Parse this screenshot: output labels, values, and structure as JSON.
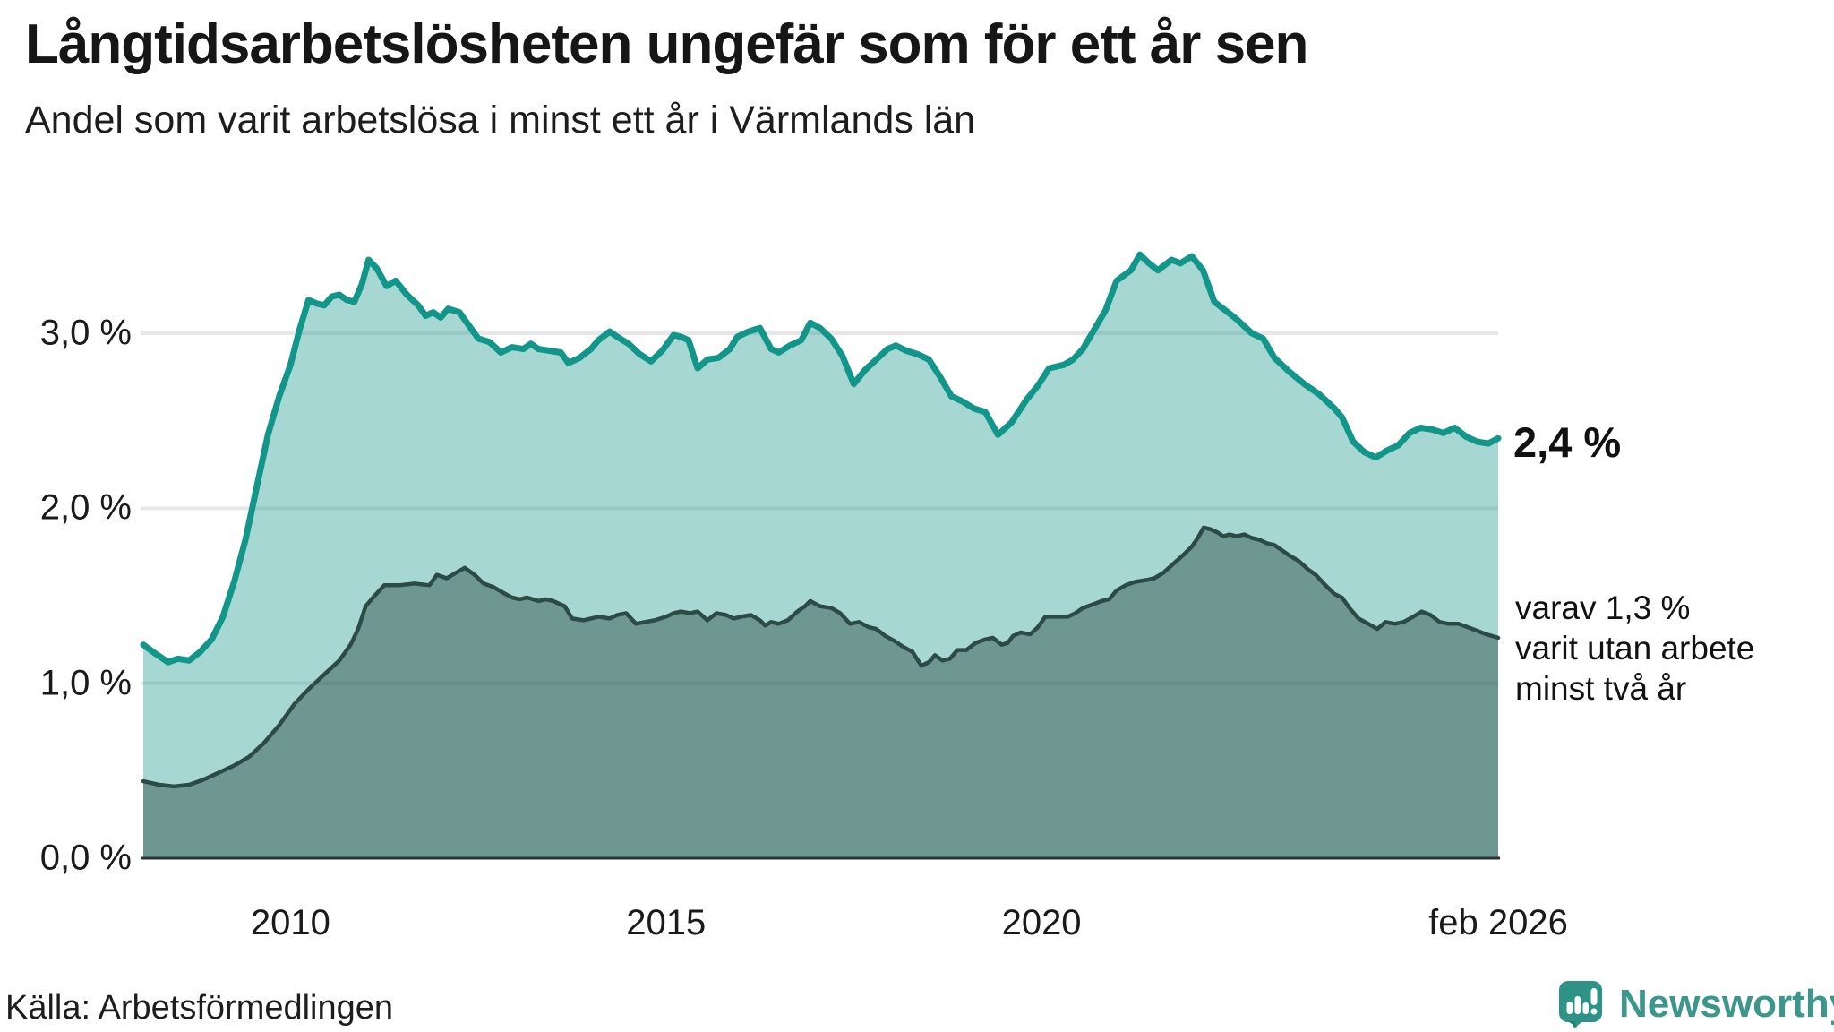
{
  "header": {
    "title": "Långtidsarbetslösheten ungefär som för ett år sen",
    "subtitle": "Andel som varit arbetslösa i minst ett år i Värmlands län"
  },
  "annotations": {
    "end_value": "2,4 %",
    "secondary_lines": [
      "varav 1,3 %",
      "varit utan arbete",
      "minst två år"
    ]
  },
  "source": "Källa: Arbetsförmedlingen",
  "logo": {
    "text": "Newsworthy",
    "icon": "newsworthy-chart-bubble-icon",
    "color": "#3b968b"
  },
  "colors": {
    "line_primary": "#12968a",
    "fill_primary": "rgba(23,150,138,0.38)",
    "line_secondary": "#2c4b46",
    "fill_secondary": "rgba(31,61,56,0.42)",
    "gridline": "#e7e7ea",
    "axis_line": "#26332f",
    "text": "#1a1a1a"
  },
  "chart_data": {
    "type": "area",
    "title": "Långtidsarbetslösheten ungefär som för ett år sen",
    "subtitle": "Andel som varit arbetslösa i minst ett år i Värmlands län",
    "unit": "%",
    "x_range": [
      2008.04,
      2026.08
    ],
    "ylim": [
      0,
      3.6
    ],
    "grid": true,
    "legend_position": "right-annotations",
    "y_ticks": [
      {
        "label": "3,0 %",
        "value": 3
      },
      {
        "label": "2,0 %",
        "value": 2
      },
      {
        "label": "1,0 %",
        "value": 1
      },
      {
        "label": "0,0 %",
        "value": 0
      }
    ],
    "x_ticks": [
      {
        "label": "2010",
        "year": 2010
      },
      {
        "label": "2015",
        "year": 2015
      },
      {
        "label": "2020",
        "year": 2020
      },
      {
        "label": "feb 2026",
        "year": 2026.08
      }
    ],
    "series": [
      {
        "name": "unemployed_at_least_one_year",
        "end_label": "2,4 %",
        "end_value": 2.4,
        "points": [
          [
            2008.04,
            1.22
          ],
          [
            2008.2,
            1.17
          ],
          [
            2008.37,
            1.12
          ],
          [
            2008.5,
            1.14
          ],
          [
            2008.65,
            1.13
          ],
          [
            2008.8,
            1.18
          ],
          [
            2008.95,
            1.25
          ],
          [
            2009.1,
            1.38
          ],
          [
            2009.25,
            1.58
          ],
          [
            2009.4,
            1.82
          ],
          [
            2009.55,
            2.12
          ],
          [
            2009.7,
            2.42
          ],
          [
            2009.85,
            2.64
          ],
          [
            2010.0,
            2.82
          ],
          [
            2010.12,
            3.02
          ],
          [
            2010.24,
            3.19
          ],
          [
            2010.35,
            3.17
          ],
          [
            2010.45,
            3.16
          ],
          [
            2010.55,
            3.21
          ],
          [
            2010.65,
            3.22
          ],
          [
            2010.75,
            3.19
          ],
          [
            2010.85,
            3.18
          ],
          [
            2010.95,
            3.28
          ],
          [
            2011.04,
            3.42
          ],
          [
            2011.15,
            3.37
          ],
          [
            2011.28,
            3.27
          ],
          [
            2011.4,
            3.3
          ],
          [
            2011.55,
            3.22
          ],
          [
            2011.7,
            3.16
          ],
          [
            2011.8,
            3.1
          ],
          [
            2011.9,
            3.12
          ],
          [
            2012.0,
            3.09
          ],
          [
            2012.1,
            3.14
          ],
          [
            2012.25,
            3.12
          ],
          [
            2012.4,
            3.03
          ],
          [
            2012.5,
            2.97
          ],
          [
            2012.65,
            2.95
          ],
          [
            2012.8,
            2.89
          ],
          [
            2012.95,
            2.92
          ],
          [
            2013.1,
            2.91
          ],
          [
            2013.2,
            2.94
          ],
          [
            2013.3,
            2.91
          ],
          [
            2013.45,
            2.9
          ],
          [
            2013.6,
            2.89
          ],
          [
            2013.7,
            2.83
          ],
          [
            2013.85,
            2.86
          ],
          [
            2014.0,
            2.91
          ],
          [
            2014.1,
            2.96
          ],
          [
            2014.25,
            3.01
          ],
          [
            2014.35,
            2.98
          ],
          [
            2014.5,
            2.94
          ],
          [
            2014.65,
            2.88
          ],
          [
            2014.8,
            2.84
          ],
          [
            2014.95,
            2.9
          ],
          [
            2015.1,
            2.99
          ],
          [
            2015.2,
            2.98
          ],
          [
            2015.3,
            2.96
          ],
          [
            2015.42,
            2.8
          ],
          [
            2015.55,
            2.85
          ],
          [
            2015.7,
            2.86
          ],
          [
            2015.85,
            2.91
          ],
          [
            2015.95,
            2.98
          ],
          [
            2016.1,
            3.01
          ],
          [
            2016.25,
            3.03
          ],
          [
            2016.4,
            2.91
          ],
          [
            2016.5,
            2.89
          ],
          [
            2016.65,
            2.93
          ],
          [
            2016.8,
            2.96
          ],
          [
            2016.92,
            3.06
          ],
          [
            2017.05,
            3.03
          ],
          [
            2017.2,
            2.97
          ],
          [
            2017.35,
            2.87
          ],
          [
            2017.5,
            2.71
          ],
          [
            2017.65,
            2.79
          ],
          [
            2017.8,
            2.85
          ],
          [
            2017.95,
            2.91
          ],
          [
            2018.06,
            2.93
          ],
          [
            2018.2,
            2.9
          ],
          [
            2018.35,
            2.88
          ],
          [
            2018.5,
            2.85
          ],
          [
            2018.65,
            2.75
          ],
          [
            2018.8,
            2.64
          ],
          [
            2018.95,
            2.61
          ],
          [
            2019.1,
            2.57
          ],
          [
            2019.25,
            2.55
          ],
          [
            2019.42,
            2.42
          ],
          [
            2019.6,
            2.49
          ],
          [
            2019.8,
            2.62
          ],
          [
            2019.95,
            2.7
          ],
          [
            2020.1,
            2.8
          ],
          [
            2020.3,
            2.82
          ],
          [
            2020.42,
            2.85
          ],
          [
            2020.55,
            2.91
          ],
          [
            2020.7,
            3.02
          ],
          [
            2020.85,
            3.13
          ],
          [
            2021.0,
            3.3
          ],
          [
            2021.19,
            3.36
          ],
          [
            2021.31,
            3.45
          ],
          [
            2021.43,
            3.4
          ],
          [
            2021.55,
            3.36
          ],
          [
            2021.73,
            3.42
          ],
          [
            2021.85,
            3.4
          ],
          [
            2022.0,
            3.44
          ],
          [
            2022.15,
            3.36
          ],
          [
            2022.3,
            3.18
          ],
          [
            2022.45,
            3.13
          ],
          [
            2022.6,
            3.08
          ],
          [
            2022.8,
            3.0
          ],
          [
            2022.95,
            2.97
          ],
          [
            2023.1,
            2.86
          ],
          [
            2023.3,
            2.78
          ],
          [
            2023.5,
            2.71
          ],
          [
            2023.7,
            2.65
          ],
          [
            2023.9,
            2.57
          ],
          [
            2024.0,
            2.52
          ],
          [
            2024.15,
            2.38
          ],
          [
            2024.3,
            2.32
          ],
          [
            2024.45,
            2.29
          ],
          [
            2024.6,
            2.33
          ],
          [
            2024.75,
            2.36
          ],
          [
            2024.9,
            2.43
          ],
          [
            2025.05,
            2.46
          ],
          [
            2025.2,
            2.45
          ],
          [
            2025.35,
            2.43
          ],
          [
            2025.5,
            2.46
          ],
          [
            2025.65,
            2.41
          ],
          [
            2025.8,
            2.38
          ],
          [
            2025.95,
            2.37
          ],
          [
            2026.08,
            2.4
          ]
        ]
      },
      {
        "name": "unemployed_at_least_two_years",
        "end_label": "varav 1,3 % varit utan arbete minst två år",
        "end_value": 1.3,
        "points": [
          [
            2008.04,
            0.44
          ],
          [
            2008.25,
            0.42
          ],
          [
            2008.45,
            0.41
          ],
          [
            2008.65,
            0.42
          ],
          [
            2008.85,
            0.45
          ],
          [
            2009.05,
            0.49
          ],
          [
            2009.25,
            0.53
          ],
          [
            2009.45,
            0.58
          ],
          [
            2009.65,
            0.66
          ],
          [
            2009.85,
            0.76
          ],
          [
            2010.05,
            0.88
          ],
          [
            2010.25,
            0.97
          ],
          [
            2010.45,
            1.05
          ],
          [
            2010.65,
            1.13
          ],
          [
            2010.8,
            1.22
          ],
          [
            2010.9,
            1.31
          ],
          [
            2011.0,
            1.44
          ],
          [
            2011.12,
            1.5
          ],
          [
            2011.25,
            1.56
          ],
          [
            2011.45,
            1.56
          ],
          [
            2011.65,
            1.57
          ],
          [
            2011.85,
            1.56
          ],
          [
            2011.95,
            1.62
          ],
          [
            2012.08,
            1.6
          ],
          [
            2012.2,
            1.63
          ],
          [
            2012.32,
            1.66
          ],
          [
            2012.45,
            1.62
          ],
          [
            2012.57,
            1.57
          ],
          [
            2012.7,
            1.55
          ],
          [
            2012.82,
            1.52
          ],
          [
            2012.95,
            1.49
          ],
          [
            2013.05,
            1.48
          ],
          [
            2013.15,
            1.49
          ],
          [
            2013.3,
            1.47
          ],
          [
            2013.4,
            1.48
          ],
          [
            2013.5,
            1.47
          ],
          [
            2013.65,
            1.44
          ],
          [
            2013.75,
            1.37
          ],
          [
            2013.9,
            1.36
          ],
          [
            2014.1,
            1.38
          ],
          [
            2014.25,
            1.37
          ],
          [
            2014.35,
            1.39
          ],
          [
            2014.47,
            1.4
          ],
          [
            2014.6,
            1.34
          ],
          [
            2014.72,
            1.35
          ],
          [
            2014.85,
            1.36
          ],
          [
            2015.0,
            1.38
          ],
          [
            2015.1,
            1.4
          ],
          [
            2015.2,
            1.41
          ],
          [
            2015.32,
            1.4
          ],
          [
            2015.42,
            1.41
          ],
          [
            2015.55,
            1.36
          ],
          [
            2015.67,
            1.4
          ],
          [
            2015.8,
            1.39
          ],
          [
            2015.9,
            1.37
          ],
          [
            2016.0,
            1.38
          ],
          [
            2016.13,
            1.39
          ],
          [
            2016.25,
            1.36
          ],
          [
            2016.32,
            1.33
          ],
          [
            2016.4,
            1.35
          ],
          [
            2016.5,
            1.34
          ],
          [
            2016.62,
            1.36
          ],
          [
            2016.75,
            1.41
          ],
          [
            2016.85,
            1.44
          ],
          [
            2016.92,
            1.47
          ],
          [
            2017.05,
            1.44
          ],
          [
            2017.2,
            1.43
          ],
          [
            2017.32,
            1.4
          ],
          [
            2017.45,
            1.34
          ],
          [
            2017.57,
            1.35
          ],
          [
            2017.7,
            1.32
          ],
          [
            2017.8,
            1.31
          ],
          [
            2017.92,
            1.27
          ],
          [
            2018.05,
            1.24
          ],
          [
            2018.15,
            1.21
          ],
          [
            2018.28,
            1.18
          ],
          [
            2018.4,
            1.1
          ],
          [
            2018.5,
            1.12
          ],
          [
            2018.58,
            1.16
          ],
          [
            2018.68,
            1.13
          ],
          [
            2018.78,
            1.14
          ],
          [
            2018.88,
            1.19
          ],
          [
            2019.0,
            1.19
          ],
          [
            2019.12,
            1.23
          ],
          [
            2019.25,
            1.25
          ],
          [
            2019.35,
            1.26
          ],
          [
            2019.47,
            1.22
          ],
          [
            2019.55,
            1.23
          ],
          [
            2019.62,
            1.27
          ],
          [
            2019.72,
            1.29
          ],
          [
            2019.85,
            1.28
          ],
          [
            2019.95,
            1.32
          ],
          [
            2020.05,
            1.38
          ],
          [
            2020.2,
            1.38
          ],
          [
            2020.35,
            1.38
          ],
          [
            2020.45,
            1.4
          ],
          [
            2020.55,
            1.43
          ],
          [
            2020.68,
            1.45
          ],
          [
            2020.8,
            1.47
          ],
          [
            2020.9,
            1.48
          ],
          [
            2021.0,
            1.53
          ],
          [
            2021.12,
            1.56
          ],
          [
            2021.25,
            1.58
          ],
          [
            2021.4,
            1.59
          ],
          [
            2021.5,
            1.6
          ],
          [
            2021.62,
            1.63
          ],
          [
            2021.75,
            1.68
          ],
          [
            2021.88,
            1.73
          ],
          [
            2022.0,
            1.78
          ],
          [
            2022.08,
            1.83
          ],
          [
            2022.16,
            1.89
          ],
          [
            2022.25,
            1.88
          ],
          [
            2022.35,
            1.86
          ],
          [
            2022.42,
            1.84
          ],
          [
            2022.5,
            1.85
          ],
          [
            2022.6,
            1.84
          ],
          [
            2022.7,
            1.85
          ],
          [
            2022.8,
            1.83
          ],
          [
            2022.9,
            1.82
          ],
          [
            2023.0,
            1.8
          ],
          [
            2023.1,
            1.79
          ],
          [
            2023.2,
            1.76
          ],
          [
            2023.3,
            1.73
          ],
          [
            2023.42,
            1.7
          ],
          [
            2023.55,
            1.65
          ],
          [
            2023.65,
            1.62
          ],
          [
            2023.78,
            1.56
          ],
          [
            2023.9,
            1.51
          ],
          [
            2024.0,
            1.49
          ],
          [
            2024.1,
            1.43
          ],
          [
            2024.22,
            1.37
          ],
          [
            2024.35,
            1.34
          ],
          [
            2024.47,
            1.31
          ],
          [
            2024.58,
            1.35
          ],
          [
            2024.7,
            1.34
          ],
          [
            2024.82,
            1.35
          ],
          [
            2024.95,
            1.38
          ],
          [
            2025.06,
            1.41
          ],
          [
            2025.18,
            1.39
          ],
          [
            2025.3,
            1.35
          ],
          [
            2025.42,
            1.34
          ],
          [
            2025.55,
            1.34
          ],
          [
            2025.68,
            1.32
          ],
          [
            2025.8,
            1.3
          ],
          [
            2025.92,
            1.28
          ],
          [
            2026.0,
            1.27
          ],
          [
            2026.08,
            1.26
          ]
        ]
      }
    ]
  }
}
